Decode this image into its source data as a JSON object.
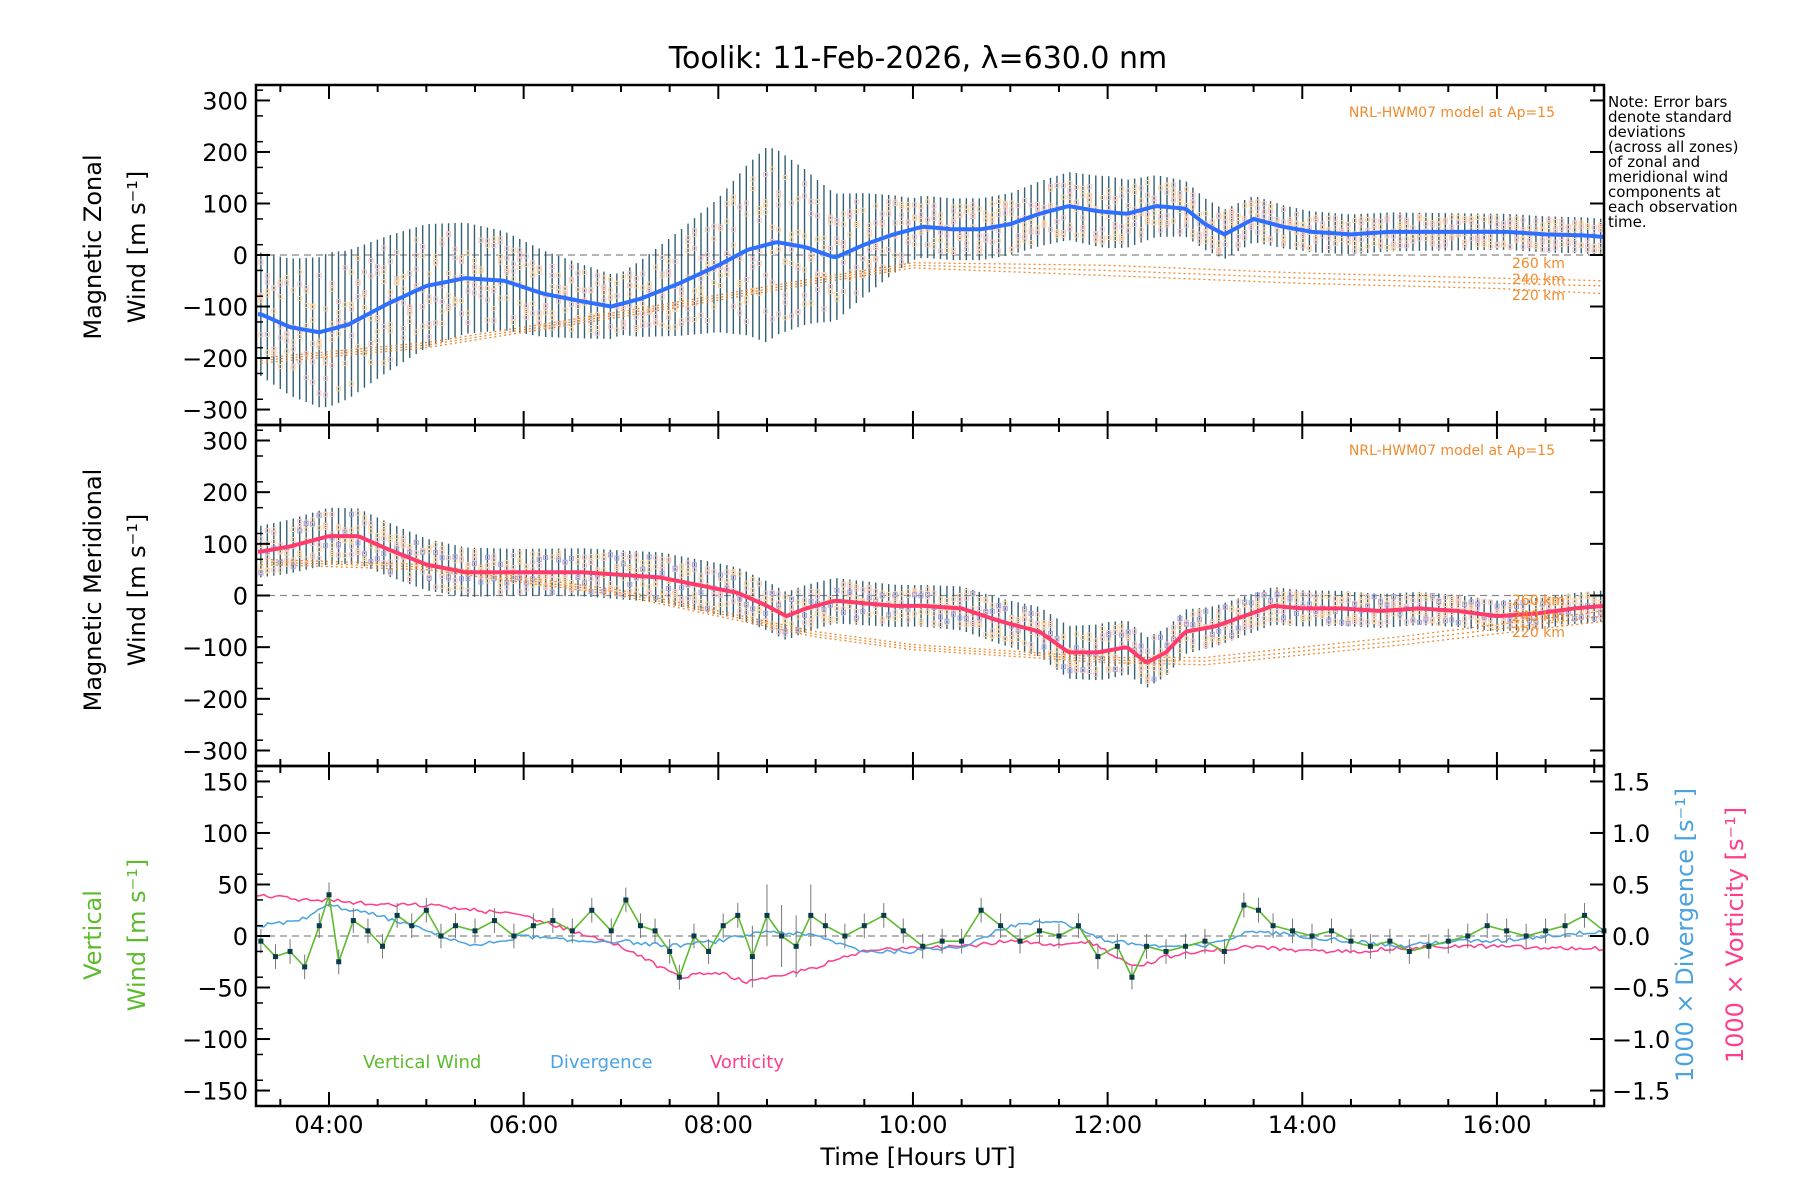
{
  "page": {
    "title": "Toolik: 11-Feb-2026, λ=630.0 nm",
    "xlabel": "Time [Hours UT]",
    "x_ticks": [
      "04:00",
      "06:00",
      "08:00",
      "10:00",
      "12:00",
      "14:00",
      "16:00"
    ],
    "note": [
      "Note: Error bars",
      "denote standard",
      "deviations",
      "(across all zones)",
      "of zonal and",
      "meridional wind",
      "components at",
      "each observation",
      "time."
    ],
    "model_label": "NRL-HWM07 model at Ap=15",
    "km_labels": [
      "260 km",
      "240 km",
      "220 km"
    ],
    "legend": {
      "vertical": "Vertical Wind",
      "divergence": "Divergence",
      "vorticity": "Vorticity"
    }
  },
  "colors": {
    "zonal": "#2f6fff",
    "meridional": "#ff3b6b",
    "vertical": "#5dbb2e",
    "divergence": "#4aa3df",
    "vorticity": "#ff3d8b",
    "model": "#f08a2c",
    "errorbar": "#1d4f66",
    "zone_light": "#ffd9a8",
    "zone_violet": "#a9a2de"
  },
  "chart_data": [
    {
      "type": "line",
      "panel": "zonal",
      "ylabel_line1": "Magnetic Zonal",
      "ylabel_line2": "Wind [m s⁻¹]",
      "ylim": [
        -330,
        330
      ],
      "y_ticks": [
        "300",
        "200",
        "100",
        "0",
        "−100",
        "−200",
        "−300"
      ],
      "y_tick_values": [
        300,
        200,
        100,
        0,
        -100,
        -200,
        -300
      ],
      "xlim_hours": [
        3.25,
        17.1
      ],
      "series": [
        {
          "name": "Magnetic Zonal Wind",
          "x": [
            3.3,
            3.6,
            3.9,
            4.2,
            4.6,
            5.0,
            5.4,
            5.8,
            6.2,
            6.6,
            6.9,
            7.2,
            7.6,
            8.0,
            8.3,
            8.6,
            8.9,
            9.2,
            9.5,
            9.8,
            10.1,
            10.4,
            10.7,
            11.0,
            11.3,
            11.6,
            11.9,
            12.2,
            12.5,
            12.8,
            13.0,
            13.2,
            13.5,
            13.8,
            14.1,
            14.5,
            14.9,
            15.3,
            15.7,
            16.1,
            16.5,
            16.9,
            17.1
          ],
          "values": [
            -115,
            -140,
            -150,
            -135,
            -95,
            -60,
            -45,
            -50,
            -75,
            -90,
            -100,
            -85,
            -55,
            -20,
            10,
            25,
            15,
            -5,
            20,
            40,
            55,
            50,
            50,
            60,
            80,
            95,
            85,
            80,
            95,
            90,
            60,
            40,
            70,
            55,
            45,
            40,
            45,
            45,
            45,
            45,
            40,
            38,
            35
          ]
        },
        {
          "name": "HWM07 260 km",
          "x": [
            3.3,
            5.0,
            7.0,
            9.0,
            10.0,
            12.0,
            14.0,
            16.0,
            17.1
          ],
          "values": [
            -200,
            -170,
            -110,
            -45,
            -15,
            -20,
            -35,
            -45,
            -50
          ]
        },
        {
          "name": "HWM07 240 km",
          "x": [
            3.3,
            5.0,
            7.0,
            9.0,
            10.0,
            12.0,
            14.0,
            16.0,
            17.1
          ],
          "values": [
            -205,
            -175,
            -115,
            -50,
            -20,
            -30,
            -45,
            -55,
            -60
          ]
        },
        {
          "name": "HWM07 220 km",
          "x": [
            3.3,
            5.0,
            7.0,
            9.0,
            10.0,
            12.0,
            14.0,
            16.0,
            17.1
          ],
          "values": [
            -210,
            -180,
            -120,
            -55,
            -25,
            -40,
            -55,
            -65,
            -75
          ]
        }
      ],
      "errorbar_sigma": [
        [
          3.3,
          120
        ],
        [
          4.0,
          150
        ],
        [
          5.0,
          120
        ],
        [
          6.0,
          90
        ],
        [
          7.0,
          60
        ],
        [
          8.0,
          130
        ],
        [
          8.5,
          190
        ],
        [
          9.0,
          140
        ],
        [
          10.0,
          60
        ],
        [
          11.0,
          60
        ],
        [
          12.0,
          70
        ],
        [
          13.0,
          50
        ],
        [
          14.0,
          40
        ],
        [
          16.0,
          35
        ],
        [
          17.1,
          35
        ]
      ]
    },
    {
      "type": "line",
      "panel": "meridional",
      "ylabel_line1": "Magnetic Meridional",
      "ylabel_line2": "Wind [m s⁻¹]",
      "ylim": [
        -330,
        330
      ],
      "y_ticks": [
        "300",
        "200",
        "100",
        "0",
        "−100",
        "−200",
        "−300"
      ],
      "y_tick_values": [
        300,
        200,
        100,
        0,
        -100,
        -200,
        -300
      ],
      "xlim_hours": [
        3.25,
        17.1
      ],
      "series": [
        {
          "name": "Magnetic Meridional Wind",
          "x": [
            3.3,
            3.6,
            4.0,
            4.3,
            4.6,
            5.0,
            5.4,
            5.8,
            6.2,
            6.6,
            7.0,
            7.4,
            7.8,
            8.2,
            8.5,
            8.7,
            8.9,
            9.2,
            9.5,
            9.8,
            10.1,
            10.5,
            10.9,
            11.3,
            11.6,
            11.9,
            12.2,
            12.4,
            12.6,
            12.8,
            13.1,
            13.4,
            13.7,
            14.0,
            14.4,
            14.8,
            15.2,
            15.6,
            16.0,
            16.4,
            16.8,
            17.1
          ],
          "values": [
            85,
            95,
            115,
            115,
            90,
            60,
            45,
            45,
            45,
            45,
            40,
            35,
            20,
            5,
            -20,
            -40,
            -25,
            -10,
            -15,
            -20,
            -20,
            -25,
            -50,
            -70,
            -110,
            -110,
            -100,
            -130,
            -110,
            -70,
            -60,
            -40,
            -20,
            -25,
            -25,
            -30,
            -25,
            -30,
            -40,
            -35,
            -25,
            -20
          ]
        },
        {
          "name": "HWM07 260 km",
          "x": [
            3.3,
            5.0,
            7.0,
            9.0,
            10.0,
            12.0,
            13.0,
            15.0,
            17.1
          ],
          "values": [
            70,
            60,
            10,
            -70,
            -95,
            -120,
            -120,
            -80,
            -30
          ]
        },
        {
          "name": "HWM07 240 km",
          "x": [
            3.3,
            5.0,
            7.0,
            9.0,
            10.0,
            12.0,
            13.0,
            15.0,
            17.1
          ],
          "values": [
            65,
            55,
            5,
            -75,
            -100,
            -125,
            -127,
            -88,
            -40
          ]
        },
        {
          "name": "HWM07 220 km",
          "x": [
            3.3,
            5.0,
            7.0,
            9.0,
            10.0,
            12.0,
            13.0,
            15.0,
            17.1
          ],
          "values": [
            60,
            50,
            0,
            -80,
            -105,
            -130,
            -134,
            -96,
            -50
          ]
        }
      ],
      "errorbar_sigma": [
        [
          3.3,
          50
        ],
        [
          4.0,
          55
        ],
        [
          6.0,
          45
        ],
        [
          8.0,
          50
        ],
        [
          9.0,
          45
        ],
        [
          10.0,
          40
        ],
        [
          11.0,
          45
        ],
        [
          12.0,
          55
        ],
        [
          13.0,
          40
        ],
        [
          14.0,
          35
        ],
        [
          16.0,
          30
        ],
        [
          17.1,
          30
        ]
      ]
    },
    {
      "type": "line",
      "panel": "vertical",
      "ylabel_line1": "Vertical",
      "ylabel_line2": "Wind [m s⁻¹]",
      "ylabel_right1": "1000 × Divergence [s⁻¹]",
      "ylabel_right2": "1000 × Vorticity [s⁻¹]",
      "ylim": [
        -165,
        165
      ],
      "y_ticks": [
        "150",
        "100",
        "50",
        "0",
        "−50",
        "−100",
        "−150"
      ],
      "y_tick_values": [
        150,
        100,
        50,
        0,
        -50,
        -100,
        -150
      ],
      "y2lim": [
        -1.65,
        1.65
      ],
      "y2_ticks": [
        "1.5",
        "1.0",
        "0.5",
        "0.0",
        "−0.5",
        "−1.0",
        "−1.5"
      ],
      "y2_tick_values": [
        1.5,
        1.0,
        0.5,
        0.0,
        -0.5,
        -1.0,
        -1.5
      ],
      "xlim_hours": [
        3.25,
        17.1
      ],
      "series": [
        {
          "name": "Vertical Wind",
          "x": [
            3.3,
            3.45,
            3.6,
            3.75,
            3.9,
            4.0,
            4.1,
            4.25,
            4.4,
            4.55,
            4.7,
            4.85,
            5.0,
            5.15,
            5.3,
            5.5,
            5.7,
            5.9,
            6.1,
            6.3,
            6.5,
            6.7,
            6.9,
            7.05,
            7.2,
            7.35,
            7.5,
            7.6,
            7.75,
            7.9,
            8.05,
            8.2,
            8.35,
            8.5,
            8.65,
            8.8,
            8.95,
            9.1,
            9.3,
            9.5,
            9.7,
            9.9,
            10.1,
            10.3,
            10.5,
            10.7,
            10.9,
            11.1,
            11.3,
            11.5,
            11.7,
            11.9,
            12.1,
            12.25,
            12.4,
            12.6,
            12.8,
            13.0,
            13.2,
            13.4,
            13.55,
            13.7,
            13.9,
            14.1,
            14.3,
            14.5,
            14.7,
            14.9,
            15.1,
            15.3,
            15.5,
            15.7,
            15.9,
            16.1,
            16.3,
            16.5,
            16.7,
            16.9,
            17.1
          ],
          "values": [
            -5,
            -20,
            -15,
            -30,
            10,
            40,
            -25,
            15,
            5,
            -10,
            20,
            10,
            25,
            0,
            10,
            5,
            15,
            0,
            10,
            15,
            5,
            25,
            5,
            35,
            10,
            5,
            -15,
            -40,
            0,
            -15,
            10,
            20,
            -20,
            20,
            0,
            -10,
            20,
            10,
            0,
            10,
            20,
            5,
            -10,
            -5,
            -5,
            25,
            10,
            -5,
            5,
            0,
            10,
            -20,
            -10,
            -40,
            -10,
            -15,
            -10,
            -5,
            -15,
            30,
            25,
            10,
            5,
            0,
            5,
            -5,
            -10,
            -5,
            -15,
            -10,
            -5,
            0,
            10,
            5,
            0,
            5,
            10,
            20,
            5
          ]
        },
        {
          "name": "Divergence",
          "x": [
            3.3,
            3.7,
            4.0,
            4.5,
            5.0,
            5.5,
            6.0,
            6.5,
            7.0,
            7.5,
            8.0,
            8.5,
            9.0,
            9.5,
            10.0,
            10.5,
            11.0,
            11.5,
            12.0,
            12.5,
            13.0,
            13.5,
            14.0,
            14.5,
            15.0,
            15.5,
            16.0,
            16.5,
            17.1
          ],
          "values": [
            0.1,
            0.15,
            0.3,
            0.2,
            0.05,
            -0.1,
            0.0,
            -0.05,
            -0.05,
            -0.1,
            -0.05,
            0.05,
            0.0,
            -0.15,
            -0.15,
            -0.1,
            0.1,
            0.15,
            -0.05,
            -0.1,
            -0.1,
            0.05,
            0.0,
            -0.05,
            -0.1,
            -0.05,
            -0.05,
            0.0,
            0.05
          ]
        },
        {
          "name": "Vorticity",
          "x": [
            3.3,
            3.7,
            4.0,
            4.5,
            5.0,
            5.5,
            6.0,
            6.5,
            7.0,
            7.3,
            7.6,
            8.0,
            8.3,
            8.6,
            9.0,
            9.5,
            10.0,
            10.5,
            11.0,
            11.5,
            11.8,
            12.0,
            12.3,
            12.6,
            13.0,
            13.5,
            14.0,
            14.5,
            15.0,
            15.5,
            16.0,
            16.5,
            17.1
          ],
          "values": [
            0.4,
            0.35,
            0.35,
            0.3,
            0.3,
            0.25,
            0.2,
            0.05,
            -0.1,
            -0.25,
            -0.4,
            -0.35,
            -0.45,
            -0.4,
            -0.3,
            -0.15,
            -0.1,
            -0.1,
            -0.05,
            -0.1,
            -0.05,
            -0.15,
            -0.3,
            -0.2,
            -0.15,
            -0.1,
            -0.15,
            -0.15,
            -0.12,
            -0.1,
            -0.1,
            -0.12,
            -0.12
          ]
        }
      ]
    }
  ]
}
